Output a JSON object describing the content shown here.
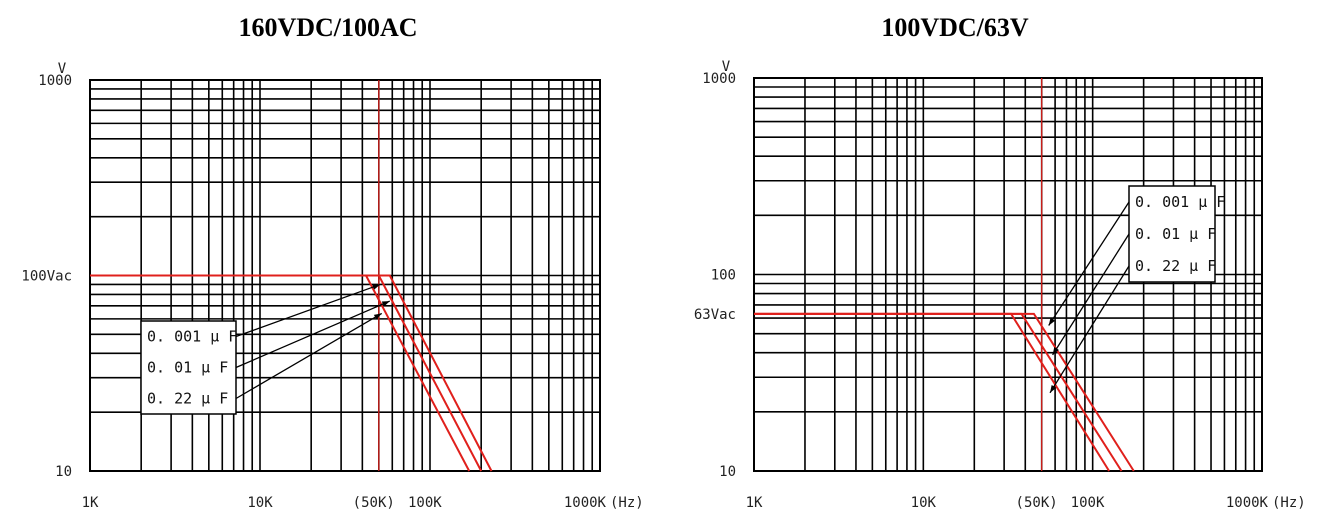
{
  "chart_data": [
    {
      "type": "line",
      "title": "160VDC/100AC",
      "ylabel": "V",
      "xlabel": "(Hz)",
      "x_scale": "log",
      "y_scale": "log",
      "xlim": [
        1000,
        1000000
      ],
      "ylim": [
        10,
        1000
      ],
      "x_ticks": [
        {
          "value": 1000,
          "label": "1K"
        },
        {
          "value": 10000,
          "label": "10K"
        },
        {
          "value": 50000,
          "label": "(50K)"
        },
        {
          "value": 100000,
          "label": "100K"
        },
        {
          "value": 1000000,
          "label": "1000K"
        }
      ],
      "y_ticks": [
        {
          "value": 1000,
          "label": "1000"
        },
        {
          "value": 100,
          "label": "100Vac"
        },
        {
          "value": 10,
          "label": "10"
        }
      ],
      "marker_frequency": 50000,
      "rated_voltage": 100,
      "legend_placement": "bottom-left",
      "series": [
        {
          "name": "0. 001 μ F",
          "x": [
            1000,
            58000,
            230000
          ],
          "y": [
            100,
            100,
            10
          ]
        },
        {
          "name": "0. 01 μ F",
          "x": [
            1000,
            50000,
            200000
          ],
          "y": [
            100,
            100,
            10
          ]
        },
        {
          "name": "0. 22 μ F",
          "x": [
            1000,
            42000,
            170000
          ],
          "y": [
            100,
            100,
            10
          ]
        }
      ],
      "annotation_targets": [
        {
          "x": 51000,
          "y": 90
        },
        {
          "x": 58000,
          "y": 74
        },
        {
          "x": 52000,
          "y": 64
        }
      ]
    },
    {
      "type": "line",
      "title": "100VDC/63V",
      "ylabel": "V",
      "xlabel": "(Hz)",
      "x_scale": "log",
      "y_scale": "log",
      "xlim": [
        1000,
        1000000
      ],
      "ylim": [
        10,
        1000
      ],
      "x_ticks": [
        {
          "value": 1000,
          "label": "1K"
        },
        {
          "value": 10000,
          "label": "10K"
        },
        {
          "value": 50000,
          "label": "(50K)"
        },
        {
          "value": 100000,
          "label": "100K"
        },
        {
          "value": 1000000,
          "label": "1000K"
        }
      ],
      "y_ticks": [
        {
          "value": 1000,
          "label": "1000"
        },
        {
          "value": 100,
          "label": "100"
        },
        {
          "value": 63,
          "label": "63Vac"
        },
        {
          "value": 10,
          "label": "10"
        }
      ],
      "marker_frequency": 50000,
      "rated_voltage": 63,
      "legend_placement": "top-right",
      "series": [
        {
          "name": "0. 001 μ F",
          "x": [
            1000,
            45000,
            175000
          ],
          "y": [
            63,
            63,
            10
          ]
        },
        {
          "name": "0. 01 μ F",
          "x": [
            1000,
            38000,
            148000
          ],
          "y": [
            63,
            63,
            10
          ]
        },
        {
          "name": "0. 22 μ F",
          "x": [
            1000,
            33000,
            125000
          ],
          "y": [
            63,
            63,
            10
          ]
        }
      ],
      "annotation_targets": [
        {
          "x": 55000,
          "y": 55
        },
        {
          "x": 58000,
          "y": 39
        },
        {
          "x": 56000,
          "y": 25
        }
      ]
    }
  ]
}
